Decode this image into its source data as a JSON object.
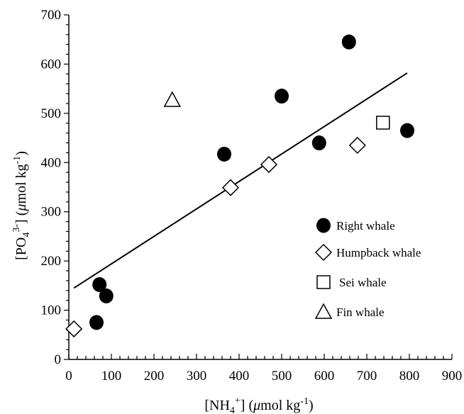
{
  "chart_data": {
    "type": "scatter",
    "title": "",
    "xlabel": "[NH4+] (μmol kg−1)",
    "ylabel": "[PO43−] (μmol kg−1)",
    "xlim": [
      0,
      900
    ],
    "ylim": [
      0,
      700
    ],
    "x_ticks": [
      0,
      100,
      200,
      300,
      400,
      500,
      600,
      700,
      800,
      900
    ],
    "y_ticks": [
      0,
      100,
      200,
      300,
      400,
      500,
      600,
      700
    ],
    "grid": false,
    "legend_position": "right",
    "series": [
      {
        "name": "Right whale",
        "marker": "filled-circle",
        "color": "#000000",
        "points": [
          {
            "x": 65,
            "y": 75
          },
          {
            "x": 72,
            "y": 152
          },
          {
            "x": 88,
            "y": 129
          },
          {
            "x": 365,
            "y": 417
          },
          {
            "x": 500,
            "y": 535
          },
          {
            "x": 588,
            "y": 440
          },
          {
            "x": 658,
            "y": 645
          },
          {
            "x": 795,
            "y": 465
          }
        ]
      },
      {
        "name": "Humpback whale",
        "marker": "open-diamond",
        "color": "#000000",
        "points": [
          {
            "x": 12,
            "y": 62
          },
          {
            "x": 380,
            "y": 349
          },
          {
            "x": 470,
            "y": 396
          },
          {
            "x": 678,
            "y": 435
          }
        ]
      },
      {
        "name": "Sei whale",
        "marker": "open-square",
        "color": "#000000",
        "points": [
          {
            "x": 738,
            "y": 481
          }
        ]
      },
      {
        "name": "Fin whale",
        "marker": "open-triangle",
        "color": "#000000",
        "points": [
          {
            "x": 243,
            "y": 527
          }
        ]
      }
    ],
    "trendline": {
      "type": "linear",
      "x": [
        12,
        795
      ],
      "y": [
        145,
        582
      ]
    }
  }
}
